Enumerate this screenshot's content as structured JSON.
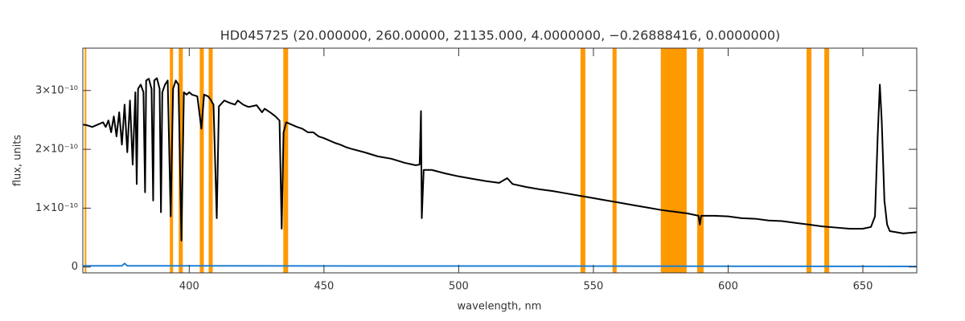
{
  "chart_data": {
    "type": "line",
    "title": "HD045725   (20.000000, 260.00000, 21135.000, 4.0000000, −0.26888416, 0.0000000)",
    "x_label": "wavelength, nm",
    "y_label": "flux, units",
    "xlim": [
      360.5,
      670
    ],
    "ylim": [
      -1e-11,
      3.72e-10
    ],
    "xticks": [
      400,
      450,
      500,
      550,
      600,
      650
    ],
    "yticks": [
      0,
      {
        "value": 1e-10,
        "label": "1×10⁻¹⁰"
      },
      {
        "value": 2e-10,
        "label": "2×10⁻¹⁰"
      },
      {
        "value": 3e-10,
        "label": "3×10⁻¹⁰"
      }
    ],
    "band_color": "#ff9900",
    "bands": [
      [
        361.2,
        361.8
      ],
      [
        392.8,
        394.0
      ],
      [
        396.1,
        397.6
      ],
      [
        403.9,
        405.4
      ],
      [
        407.2,
        408.7
      ],
      [
        434.9,
        436.7
      ],
      [
        545.2,
        547.0
      ],
      [
        557.1,
        558.6
      ],
      [
        575.0,
        584.6
      ],
      [
        588.5,
        590.9
      ],
      [
        629.1,
        630.9
      ],
      [
        635.7,
        637.5
      ]
    ],
    "series": [
      {
        "color": "#000000",
        "x": [
          360.5,
          362,
          364,
          366,
          368,
          369,
          370,
          371,
          372,
          373,
          374,
          375,
          376,
          377,
          378,
          379,
          380,
          380.5,
          381,
          382,
          383,
          383.6,
          384,
          385,
          386,
          386.6,
          387,
          388,
          389,
          389.5,
          390,
          391,
          392,
          393.1,
          394,
          395,
          396,
          397.1,
          398,
          399,
          400,
          401,
          403,
          404.5,
          405.5,
          407,
          408,
          409,
          410.2,
          411,
          413,
          415,
          417,
          418,
          420,
          422,
          425,
          427,
          428,
          430,
          432,
          433.5,
          434.3,
          435,
          436,
          438,
          440,
          442,
          444,
          446,
          448,
          450,
          452,
          454,
          456,
          458,
          460,
          465,
          470,
          475,
          480,
          484,
          485.5,
          486,
          486.3,
          487,
          490,
          495,
          500,
          505,
          510,
          515,
          518,
          520,
          525,
          530,
          535,
          540,
          545,
          550,
          555,
          560,
          565,
          570,
          575,
          578,
          580,
          585,
          589,
          589.5,
          590,
          595,
          600,
          605,
          610,
          615,
          620,
          625,
          630,
          635,
          640,
          645,
          650,
          653,
          654.5,
          655.5,
          656.3,
          657,
          658,
          659,
          660,
          665,
          670
        ],
        "values": [
          2.42e-10,
          2.41e-10,
          2.38e-10,
          2.42e-10,
          2.46e-10,
          2.38e-10,
          2.49e-10,
          2.29e-10,
          2.56e-10,
          2.22e-10,
          2.63e-10,
          2.08e-10,
          2.76e-10,
          1.95e-10,
          2.83e-10,
          1.74e-10,
          2.97e-10,
          1.41e-10,
          3.03e-10,
          3.1e-10,
          2.97e-10,
          1.27e-10,
          3.17e-10,
          3.2e-10,
          3.03e-10,
          1.13e-10,
          3.17e-10,
          3.21e-10,
          3.03e-10,
          9.3e-11,
          2.97e-10,
          3.1e-10,
          3.17e-10,
          8.6e-11,
          3.03e-10,
          3.17e-10,
          3.1e-10,
          4.5e-11,
          2.97e-10,
          2.93e-10,
          2.97e-10,
          2.93e-10,
          2.9e-10,
          2.35e-10,
          2.93e-10,
          2.9e-10,
          2.84e-10,
          2.76e-10,
          8.3e-11,
          2.73e-10,
          2.83e-10,
          2.79e-10,
          2.76e-10,
          2.83e-10,
          2.76e-10,
          2.72e-10,
          2.75e-10,
          2.63e-10,
          2.69e-10,
          2.63e-10,
          2.56e-10,
          2.49e-10,
          6.5e-11,
          2.29e-10,
          2.46e-10,
          2.42e-10,
          2.38e-10,
          2.35e-10,
          2.29e-10,
          2.29e-10,
          2.22e-10,
          2.19e-10,
          2.15e-10,
          2.11e-10,
          2.08e-10,
          2.04e-10,
          2.01e-10,
          1.95e-10,
          1.88e-10,
          1.84e-10,
          1.77e-10,
          1.73e-10,
          1.74e-10,
          2.65e-10,
          8.3e-11,
          1.65e-10,
          1.65e-10,
          1.59e-10,
          1.54e-10,
          1.5e-10,
          1.46e-10,
          1.43e-10,
          1.51e-10,
          1.41e-10,
          1.36e-10,
          1.32e-10,
          1.29e-10,
          1.25e-10,
          1.21e-10,
          1.17e-10,
          1.13e-10,
          1.09e-10,
          1.05e-10,
          1.01e-10,
          9.7e-11,
          9.5e-11,
          9.4e-11,
          9.1e-11,
          8.7e-11,
          7.2e-11,
          8.7e-11,
          8.7e-11,
          8.6e-11,
          8.3e-11,
          8.2e-11,
          7.9e-11,
          7.8e-11,
          7.5e-11,
          7.2e-11,
          6.9e-11,
          6.7e-11,
          6.5e-11,
          6.5e-11,
          6.8e-11,
          8.6e-11,
          2.22e-10,
          3.1e-10,
          2.49e-10,
          1.13e-10,
          7.2e-11,
          6.1e-11,
          5.7e-11,
          5.9e-11
        ]
      },
      {
        "color": "#1e7fd6",
        "x": [
          360.5,
          375,
          376,
          377,
          670
        ],
        "values": [
          2e-12,
          2e-12,
          6e-12,
          2e-12,
          1e-12
        ]
      }
    ]
  }
}
